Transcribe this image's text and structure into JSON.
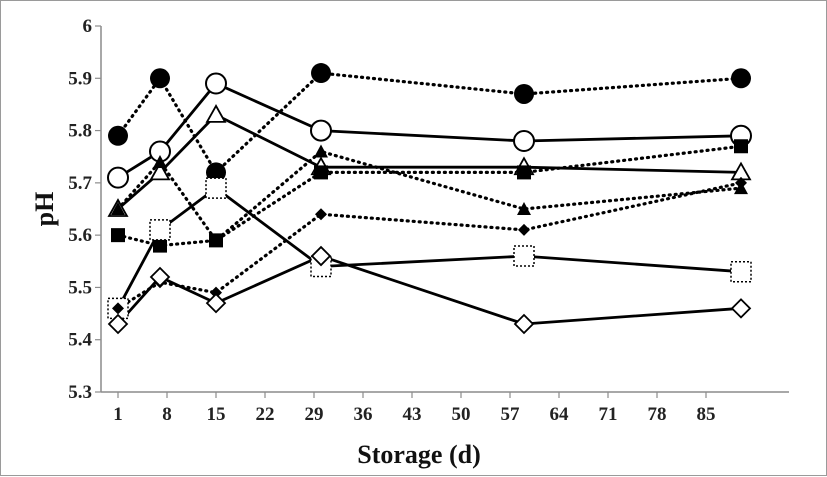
{
  "chart_data": {
    "type": "line",
    "title": "",
    "xlabel": "Storage (d)",
    "ylabel": "pH",
    "xlim": [
      1,
      92
    ],
    "ylim": [
      5.3,
      6.0
    ],
    "x_ticks": [
      1,
      8,
      15,
      22,
      29,
      36,
      43,
      50,
      57,
      64,
      71,
      78,
      85
    ],
    "y_ticks": [
      5.3,
      5.4,
      5.5,
      5.6,
      5.7,
      5.8,
      5.9,
      6.0
    ],
    "x_tick_labels": [
      "1",
      "8",
      "15",
      "22",
      "29",
      "36",
      "43",
      "50",
      "57",
      "64",
      "71",
      "78",
      "85"
    ],
    "y_tick_labels": [
      "5.3",
      "5.4",
      "5.5",
      "5.6",
      "5.7",
      "5.8",
      "5.9",
      "6"
    ],
    "grid": false,
    "legend": "none",
    "series": [
      {
        "marker": "circle-filled",
        "line": "dotted",
        "x": [
          1,
          7,
          15,
          30,
          59,
          90
        ],
        "values": [
          5.79,
          5.9,
          5.72,
          5.91,
          5.87,
          5.9
        ]
      },
      {
        "marker": "circle-open",
        "line": "solid",
        "x": [
          1,
          7,
          15,
          30,
          59,
          90
        ],
        "values": [
          5.71,
          5.76,
          5.89,
          5.8,
          5.78,
          5.79
        ]
      },
      {
        "marker": "triangle-open",
        "line": "solid",
        "x": [
          1,
          7,
          15,
          30,
          59,
          90
        ],
        "values": [
          5.65,
          5.72,
          5.83,
          5.73,
          5.73,
          5.72
        ]
      },
      {
        "marker": "triangle-filled",
        "line": "dotted",
        "x": [
          1,
          7,
          15,
          30,
          59,
          90
        ],
        "values": [
          5.65,
          5.74,
          5.59,
          5.76,
          5.65,
          5.69
        ]
      },
      {
        "marker": "square-filled",
        "line": "dotted",
        "x": [
          1,
          7,
          15,
          30,
          59,
          90
        ],
        "values": [
          5.6,
          5.58,
          5.59,
          5.72,
          5.72,
          5.77
        ]
      },
      {
        "marker": "square-dashed",
        "line": "solid",
        "x": [
          1,
          7,
          15,
          30,
          59,
          90
        ],
        "values": [
          5.46,
          5.61,
          5.69,
          5.54,
          5.56,
          5.53
        ]
      },
      {
        "marker": "diamond-filled",
        "line": "dotted",
        "x": [
          1,
          7,
          15,
          30,
          59,
          90
        ],
        "values": [
          5.46,
          5.51,
          5.49,
          5.64,
          5.61,
          5.7
        ]
      },
      {
        "marker": "diamond-open",
        "line": "solid",
        "x": [
          1,
          7,
          15,
          30,
          59,
          90
        ],
        "values": [
          5.43,
          5.52,
          5.47,
          5.56,
          5.43,
          5.46
        ]
      }
    ]
  }
}
